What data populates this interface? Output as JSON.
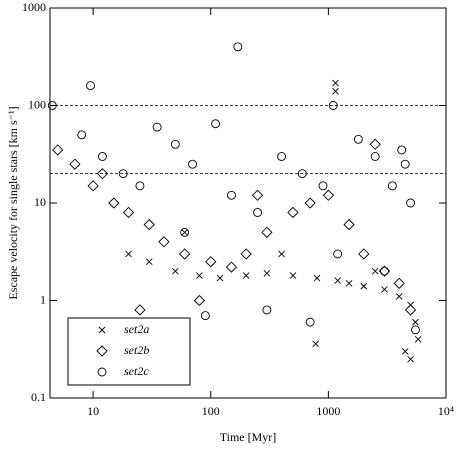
{
  "chart_data": {
    "type": "scatter",
    "xlabel": "Time [Myr]",
    "ylabel": "Escape velocity for single stars [km s⁻¹]",
    "xscale": "log",
    "yscale": "log",
    "xlim": [
      4.3,
      10000
    ],
    "ylim": [
      0.1,
      1000
    ],
    "xticks": [
      10,
      100,
      1000,
      {
        "value": 10000,
        "label": "10⁴"
      }
    ],
    "yticks": [
      0.1,
      1,
      10,
      100,
      1000
    ],
    "hlines": [
      20,
      100
    ],
    "legend": "lower left",
    "series": [
      {
        "name": "set2a",
        "marker": "x",
        "color": "#000000",
        "x": [
          20,
          30,
          50,
          80,
          120,
          200,
          300,
          500,
          800,
          1200,
          1500,
          2000,
          3000,
          4000,
          5000,
          5500,
          1150,
          1150,
          780,
          5000,
          4500,
          5800,
          60,
          400,
          2500
        ],
        "values": [
          3,
          2.5,
          2,
          1.8,
          1.7,
          1.8,
          1.9,
          1.8,
          1.7,
          1.6,
          1.5,
          1.4,
          1.3,
          1.1,
          0.9,
          0.6,
          170,
          140,
          0.36,
          0.25,
          0.3,
          0.4,
          5,
          3,
          2
        ]
      },
      {
        "name": "set2b",
        "marker": "diamond",
        "color": "#000000",
        "x": [
          5,
          7,
          10,
          15,
          20,
          30,
          40,
          60,
          100,
          150,
          200,
          300,
          500,
          700,
          1000,
          1500,
          2000,
          3000,
          4000,
          5000,
          12,
          25,
          80,
          250,
          2500
        ],
        "values": [
          35,
          25,
          15,
          10,
          8,
          6,
          4,
          3,
          2.5,
          2.2,
          3,
          5,
          8,
          10,
          12,
          6,
          3,
          2,
          1.5,
          0.8,
          20,
          0.8,
          1,
          12,
          40
        ]
      },
      {
        "name": "set2c",
        "marker": "circle",
        "color": "#000000",
        "x": [
          4.5,
          9.5,
          170,
          35,
          8,
          12,
          18,
          25,
          50,
          70,
          110,
          150,
          250,
          400,
          600,
          900,
          1100,
          1800,
          2500,
          3500,
          4200,
          5000,
          5500,
          90,
          300,
          700,
          1200,
          3000,
          4500,
          60
        ],
        "values": [
          100,
          160,
          400,
          60,
          50,
          30,
          20,
          15,
          40,
          25,
          65,
          12,
          8,
          30,
          20,
          15,
          100,
          45,
          30,
          15,
          35,
          10,
          0.5,
          0.7,
          0.8,
          0.6,
          3,
          2,
          25,
          5
        ]
      }
    ]
  }
}
